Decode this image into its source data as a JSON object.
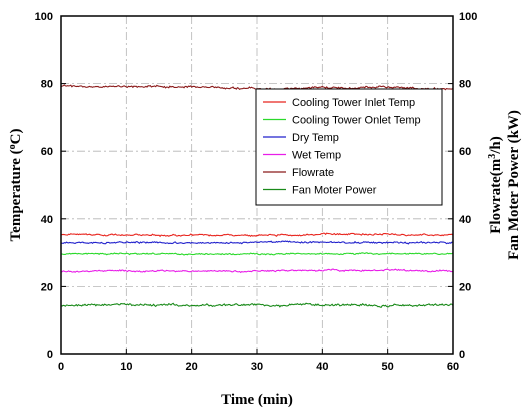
{
  "chart_data": {
    "type": "line",
    "x_label": "Time (min)",
    "y_label_left": {
      "prefix": "Temperature (",
      "sup": "o",
      "suffix": "C)"
    },
    "y_label_right_1": {
      "prefix": "Flowrate(m",
      "sup": "3",
      "suffix": "/h)"
    },
    "y_label_right_2": "Fan Moter Power (kW)",
    "xlim": [
      0,
      60
    ],
    "ylim": [
      0,
      100
    ],
    "x_ticks": [
      "0",
      "10",
      "20",
      "30",
      "40",
      "50",
      "60"
    ],
    "y_ticks": [
      "0",
      "20",
      "40",
      "60",
      "80",
      "100"
    ],
    "y2_ticks": [
      "0",
      "20",
      "40",
      "60",
      "80",
      "100"
    ],
    "grid": true,
    "legend_position": "right",
    "series": [
      {
        "name": "Cooling Tower Inlet Temp",
        "color": "#e8251e",
        "level": 35.3,
        "noise": 0.35,
        "x": [
          0,
          10,
          20,
          30,
          40,
          50,
          60
        ],
        "y": [
          35.3,
          35.2,
          35.1,
          35.2,
          35.3,
          35.4,
          35.2
        ]
      },
      {
        "name": "Cooling Tower Onlet Temp",
        "color": "#2bd92b",
        "level": 29.6,
        "noise": 0.3,
        "x": [
          0,
          10,
          20,
          30,
          40,
          50,
          60
        ],
        "y": [
          29.7,
          29.6,
          29.5,
          29.6,
          29.7,
          29.6,
          29.6
        ]
      },
      {
        "name": "Dry Temp",
        "color": "#2222cc",
        "level": 32.9,
        "noise": 0.35,
        "x": [
          0,
          10,
          20,
          30,
          40,
          50,
          60
        ],
        "y": [
          32.9,
          33.0,
          32.8,
          33.0,
          33.1,
          33.0,
          32.9
        ]
      },
      {
        "name": "Wet Temp",
        "color": "#e81ee8",
        "level": 24.5,
        "noise": 0.35,
        "x": [
          0,
          10,
          20,
          30,
          40,
          50,
          60
        ],
        "y": [
          24.4,
          24.6,
          24.5,
          24.6,
          24.7,
          24.8,
          24.5
        ]
      },
      {
        "name": "Flowrate",
        "color": "#8b1a1a",
        "level": 78.9,
        "noise": 0.45,
        "x": [
          0,
          10,
          20,
          30,
          40,
          50,
          60
        ],
        "y": [
          79.3,
          79.2,
          79.0,
          78.6,
          78.7,
          78.8,
          78.5
        ]
      },
      {
        "name": "Fan Moter Power",
        "color": "#1a8a1a",
        "level": 14.5,
        "noise": 0.5,
        "x": [
          0,
          10,
          20,
          30,
          40,
          50,
          60
        ],
        "y": [
          14.5,
          14.6,
          14.4,
          14.5,
          14.6,
          14.4,
          14.5
        ]
      }
    ]
  }
}
